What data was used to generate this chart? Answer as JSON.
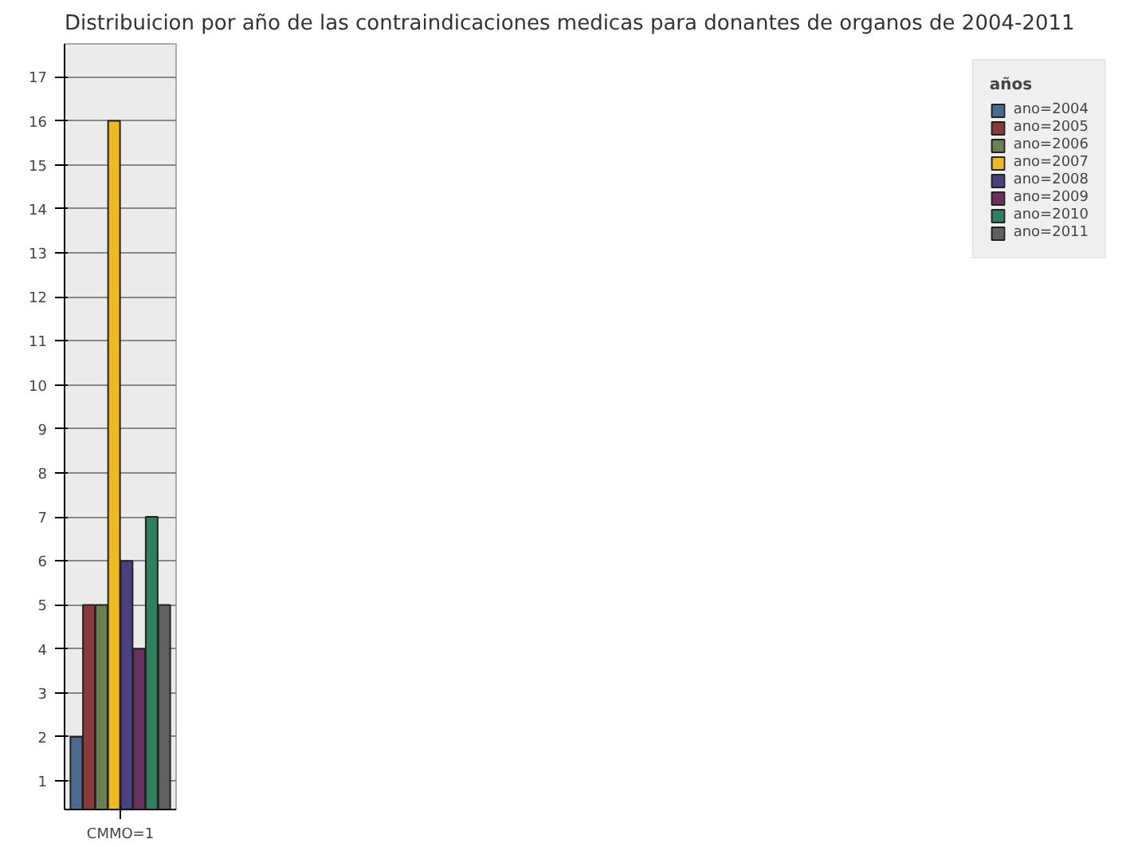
{
  "chart_data": {
    "type": "bar",
    "title": "Distribuicion por año de las contraindicaciones medicas para donantes de organos de 2004-2011",
    "categories": [
      "CMMO=1"
    ],
    "legend_title": "años",
    "legend": "right",
    "grid": "y",
    "ylim": [
      0.35,
      17.75
    ],
    "yticks": [
      1,
      2,
      3,
      4,
      5,
      6,
      7,
      8,
      9,
      10,
      11,
      12,
      13,
      14,
      15,
      16,
      17
    ],
    "series": [
      {
        "name": "ano=2004",
        "color": "#4a6a90",
        "values": [
          2
        ]
      },
      {
        "name": "ano=2005",
        "color": "#8b3a3a",
        "values": [
          5
        ]
      },
      {
        "name": "ano=2006",
        "color": "#6b7f55",
        "values": [
          5
        ]
      },
      {
        "name": "ano=2007",
        "color": "#f0b820",
        "values": [
          16
        ]
      },
      {
        "name": "ano=2008",
        "color": "#4a3f80",
        "values": [
          6
        ]
      },
      {
        "name": "ano=2009",
        "color": "#6a3060",
        "values": [
          4
        ]
      },
      {
        "name": "ano=2010",
        "color": "#2e8060",
        "values": [
          7
        ]
      },
      {
        "name": "ano=2011",
        "color": "#606060",
        "values": [
          5
        ]
      }
    ]
  }
}
